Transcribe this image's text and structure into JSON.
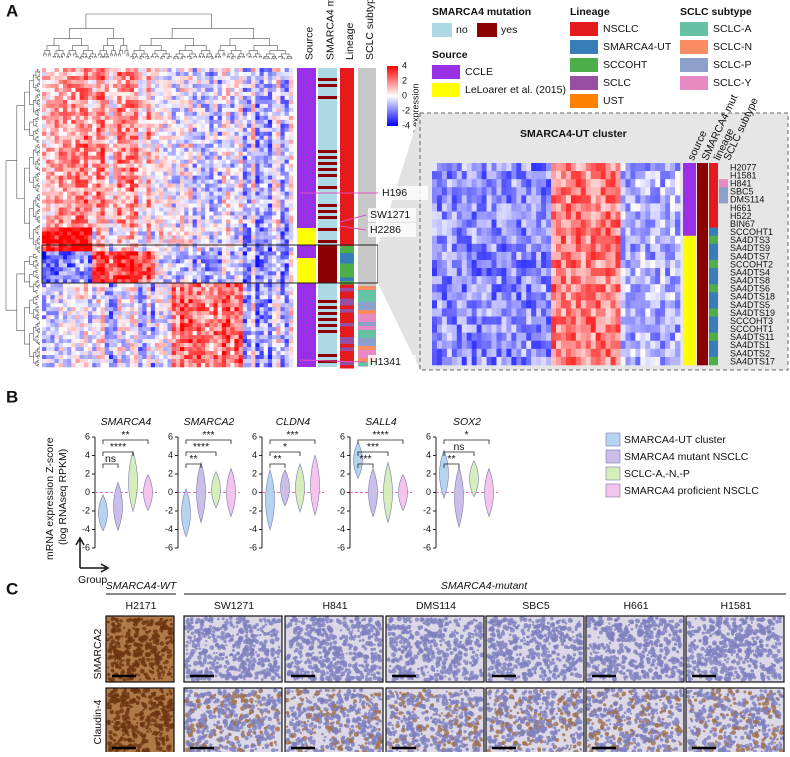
{
  "panel_a": {
    "label": "A",
    "annotation_columns": [
      "Source",
      "SMARCA4 mut",
      "Lineage",
      "SCLC subtype"
    ],
    "colorbar": {
      "title": "Relative expression",
      "ticks": [
        4,
        2,
        0,
        -2,
        -4
      ],
      "colors": [
        "#ff0000",
        "#ffffff",
        "#0000ff"
      ]
    },
    "legends": [
      {
        "title": "SMARCA4 mutation",
        "items": [
          {
            "label": "no",
            "color": "#add8e6"
          },
          {
            "label": "yes",
            "color": "#8b0000"
          }
        ]
      },
      {
        "title": "Source",
        "items": [
          {
            "label": "CCLE",
            "color": "#9a2fe8"
          },
          {
            "label": "LeLoarer et al. (2015)",
            "color": "#ffff00"
          }
        ]
      },
      {
        "title": "Lineage",
        "items": [
          {
            "label": "NSCLC",
            "color": "#e41a1c"
          },
          {
            "label": "SMARCA4-UT",
            "color": "#377eb8"
          },
          {
            "label": "SCCOHT",
            "color": "#4daf4a"
          },
          {
            "label": "SCLC",
            "color": "#984ea3"
          },
          {
            "label": "UST",
            "color": "#ff7f00"
          }
        ]
      },
      {
        "title": "SCLC subtype",
        "items": [
          {
            "label": "SCLC-A",
            "color": "#66c2a5"
          },
          {
            "label": "SCLC-N",
            "color": "#fc8d62"
          },
          {
            "label": "SCLC-P",
            "color": "#8da0cb"
          },
          {
            "label": "SCLC-Y",
            "color": "#e78ac3"
          }
        ]
      }
    ],
    "cell_labels": [
      "H196",
      "SW1271",
      "H2286",
      "H1341"
    ],
    "inset": {
      "title": "SMARCA4-UT cluster",
      "annotation_columns": [
        "source",
        "SMARCA4 mut",
        "lineage",
        "SCLC subtype"
      ],
      "rows": [
        "H2077",
        "H1581",
        "H841",
        "SBC5",
        "DMS114",
        "H661",
        "H522",
        "BIN67",
        "SCCOHT1",
        "SA4DTS3",
        "SA4DTS9",
        "SA4DTS7",
        "SCCOHT2",
        "SA4DTS4",
        "SA4DTS8",
        "SA4DTS6",
        "SA4DTS18",
        "SA4DTS5",
        "SA4DTS19",
        "SCCOHT3",
        "SCCOHT1",
        "SA4DTS11",
        "SA4DTS1",
        "SA4DTS2",
        "SA4DTS17"
      ]
    }
  },
  "panel_b": {
    "label": "B",
    "y_label": [
      "mRNA expression Z-score",
      "(log RNAseq RPKM)"
    ],
    "x_label": "Group",
    "ylim": [
      -6,
      6
    ],
    "yticks": [
      6,
      4,
      2,
      0,
      -2,
      -4,
      -6
    ],
    "groups": [
      {
        "name": "SMARCA4-UT cluster",
        "color": "#b6d4ee"
      },
      {
        "name": "SMARCA4 mutant NSCLC",
        "color": "#cbbfe9"
      },
      {
        "name": "SCLC-A,-N,-P",
        "color": "#d6eebc"
      },
      {
        "name": "SMARCA4 proficient NSCLC",
        "color": "#f5c4ec"
      }
    ],
    "genes": [
      {
        "name": "SMARCA4",
        "significance": [
          "**",
          "****",
          "ns"
        ],
        "medians": [
          -2.2,
          -1.5,
          1.2,
          0
        ]
      },
      {
        "name": "SMARCA2",
        "significance": [
          "***",
          "****",
          "**"
        ],
        "medians": [
          -2.2,
          0,
          0.3,
          0
        ]
      },
      {
        "name": "CLDN4",
        "significance": [
          "***",
          "*",
          "**"
        ],
        "medians": [
          -0.8,
          0.5,
          0.5,
          0.8
        ]
      },
      {
        "name": "SALL4",
        "significance": [
          "****",
          "***",
          "***"
        ],
        "medians": [
          3.5,
          0,
          0,
          0
        ]
      },
      {
        "name": "SOX2",
        "significance": [
          "*",
          "ns",
          "**"
        ],
        "medians": [
          2,
          -0.5,
          1.5,
          0
        ]
      }
    ]
  },
  "panel_c": {
    "label": "C",
    "wt_header": "SMARCA4-WT",
    "mutant_header": "SMARCA4-mutant",
    "cell_lines": [
      "H2171",
      "SW1271",
      "H841",
      "DMS114",
      "SBC5",
      "H661",
      "H1581"
    ],
    "stains": [
      "SMARCA2",
      "Claudin-4"
    ]
  }
}
